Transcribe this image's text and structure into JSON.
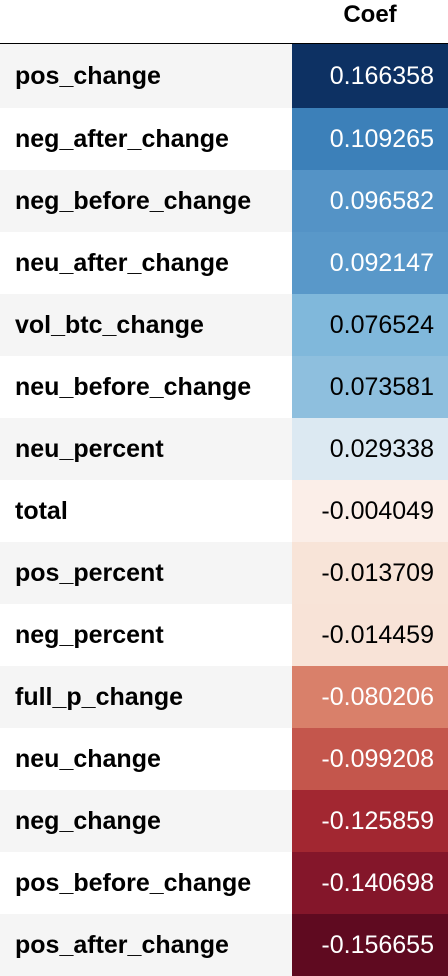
{
  "header": {
    "coef_label": "Coef"
  },
  "rows": [
    {
      "name": "pos_change",
      "value": "0.166358",
      "bg": "#0d3163",
      "fg": "#ffffff"
    },
    {
      "name": "neg_after_change",
      "value": "0.109265",
      "bg": "#3c80b9",
      "fg": "#ffffff"
    },
    {
      "name": "neg_before_change",
      "value": "0.096582",
      "bg": "#5493c6",
      "fg": "#ffffff"
    },
    {
      "name": "neu_after_change",
      "value": "0.092147",
      "bg": "#5998c9",
      "fg": "#ffffff"
    },
    {
      "name": "vol_btc_change",
      "value": "0.076524",
      "bg": "#80b8db",
      "fg": "#000000"
    },
    {
      "name": "neu_before_change",
      "value": "0.073581",
      "bg": "#8ebfde",
      "fg": "#000000"
    },
    {
      "name": "neu_percent",
      "value": "0.029338",
      "bg": "#dce9f2",
      "fg": "#000000"
    },
    {
      "name": "total",
      "value": "-0.004049",
      "bg": "#fbeee8",
      "fg": "#000000"
    },
    {
      "name": "pos_percent",
      "value": "-0.013709",
      "bg": "#f8e4d8",
      "fg": "#000000"
    },
    {
      "name": "neg_percent",
      "value": "-0.014459",
      "bg": "#f8e3d7",
      "fg": "#000000"
    },
    {
      "name": "full_p_change",
      "value": "-0.080206",
      "bg": "#d9806a",
      "fg": "#ffffff"
    },
    {
      "name": "neu_change",
      "value": "-0.099208",
      "bg": "#c4564c",
      "fg": "#ffffff"
    },
    {
      "name": "neg_change",
      "value": "-0.125859",
      "bg": "#a22731",
      "fg": "#ffffff"
    },
    {
      "name": "pos_before_change",
      "value": "-0.140698",
      "bg": "#84162a",
      "fg": "#ffffff"
    },
    {
      "name": "pos_after_change",
      "value": "-0.156655",
      "bg": "#5f0a20",
      "fg": "#ffffff"
    }
  ]
}
